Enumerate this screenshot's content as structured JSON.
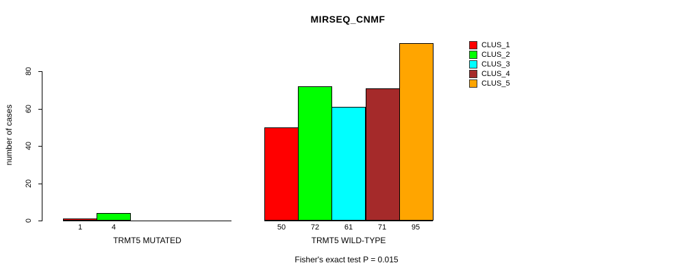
{
  "chart_data": {
    "type": "bar",
    "title": "MIRSEQ_CNMF",
    "xlabel": "",
    "ylabel": "number of cases",
    "ylim": [
      0,
      97
    ],
    "yticks": [
      0,
      20,
      40,
      60,
      80
    ],
    "grid": false,
    "legend_position": "outside-top-right",
    "categories": [
      "CLUS_1",
      "CLUS_2",
      "CLUS_3",
      "CLUS_4",
      "CLUS_5"
    ],
    "colors": [
      "#ff0000",
      "#00ff00",
      "#00ffff",
      "#a52a2a",
      "#ffa500"
    ],
    "groups": [
      {
        "label": "TRMT5 MUTATED",
        "values": [
          1,
          4,
          0,
          0,
          0
        ],
        "bar_labels": [
          "1",
          "4",
          "",
          "",
          ""
        ]
      },
      {
        "label": "TRMT5 WILD-TYPE",
        "values": [
          50,
          72,
          61,
          71,
          95
        ],
        "bar_labels": [
          "50",
          "72",
          "61",
          "71",
          "95"
        ]
      }
    ],
    "annotation": "Fisher's exact test P = 0.015"
  }
}
